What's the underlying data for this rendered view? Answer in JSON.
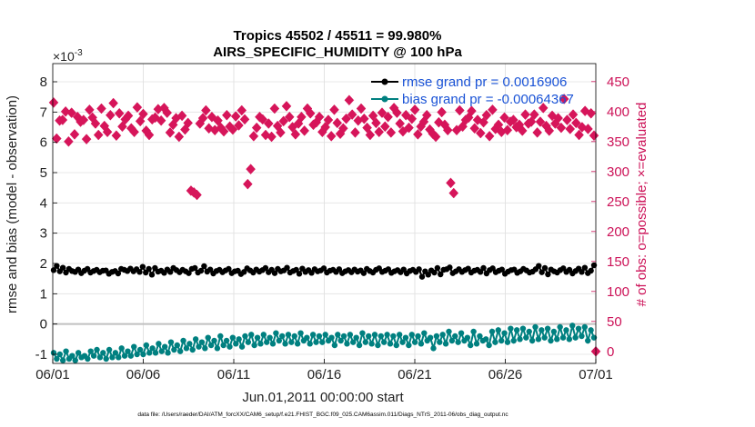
{
  "chart_data": {
    "type": "line",
    "title_line1": "Tropics 45502 / 45511 = 99.980%",
    "title_line2": "AIRS_SPECIFIC_HUMIDITY @ 100 hPa",
    "xlabel": "Jun.01,2011 00:00:00 start",
    "ylabel_left": "rmse and bias (model - observation)",
    "ylabel_right": "# of obs: o=possible; ×=evaluated",
    "left_exponent": "×10",
    "left_exponent_power": "-3",
    "x_tick_labels": [
      "06/01",
      "06/06",
      "06/11",
      "06/16",
      "06/21",
      "06/26",
      "07/01"
    ],
    "x_tick_days": [
      0,
      5,
      10,
      15,
      20,
      25,
      30
    ],
    "xlim": [
      0,
      30
    ],
    "left_ylim": [
      -1.3,
      8.6
    ],
    "left_ticks": [
      -1,
      0,
      1,
      2,
      3,
      4,
      5,
      6,
      7,
      8
    ],
    "right_ylim": [
      -20,
      480
    ],
    "right_ticks": [
      0,
      50,
      100,
      150,
      200,
      250,
      300,
      350,
      400,
      450
    ],
    "grid": true,
    "colors": {
      "rmse": "#000000",
      "bias": "#008080",
      "obs": "#d6155a",
      "right_axis": "#cc1157",
      "legend_text": "#1a53d6",
      "zero_line": "#c0c0c0"
    },
    "legend_placement": "top-right",
    "legend": [
      {
        "key": "rmse",
        "label": "rmse grand pr = 0.0016906"
      },
      {
        "key": "bias",
        "label": "bias grand pr = -0.00064367"
      }
    ],
    "series": [
      {
        "key": "rmse",
        "axis": "left",
        "values": [
          1.78,
          1.92,
          1.74,
          1.86,
          1.7,
          1.82,
          1.75,
          1.72,
          1.8,
          1.68,
          1.76,
          1.82,
          1.7,
          1.75,
          1.79,
          1.71,
          1.76,
          1.77,
          1.66,
          1.72,
          1.75,
          1.67,
          1.82,
          1.79,
          1.75,
          1.83,
          1.74,
          1.81,
          1.72,
          1.89,
          1.7,
          1.82,
          1.63,
          1.85,
          1.73,
          1.76,
          1.69,
          1.8,
          1.72,
          1.85,
          1.78,
          1.71,
          1.79,
          1.74,
          1.68,
          1.82,
          1.85,
          1.7,
          1.76,
          1.91,
          1.73,
          1.8,
          1.67,
          1.75,
          1.79,
          1.71,
          1.77,
          1.82,
          1.68,
          1.74,
          1.76,
          1.65,
          1.72,
          1.84,
          1.77,
          1.7,
          1.8,
          1.73,
          1.78,
          1.85,
          1.71,
          1.79,
          1.68,
          1.82,
          1.74,
          1.77,
          1.86,
          1.7,
          1.75,
          1.79,
          1.66,
          1.83,
          1.72,
          1.78,
          1.69,
          1.81,
          1.74,
          1.77,
          1.84,
          1.7,
          1.76,
          1.79,
          1.72,
          1.81,
          1.68,
          1.74,
          1.78,
          1.71,
          1.8,
          1.73,
          1.77,
          1.68,
          1.82,
          1.75,
          1.7,
          1.79,
          1.84,
          1.72,
          1.76,
          1.81,
          1.69,
          1.74,
          1.78,
          1.71,
          1.8,
          1.67,
          1.75,
          1.79,
          1.72,
          1.81,
          1.56,
          1.74,
          1.63,
          1.77,
          1.7,
          1.85,
          1.64,
          1.79,
          1.81,
          1.87,
          1.68,
          1.74,
          1.81,
          1.72,
          1.78,
          1.83,
          1.7,
          1.76,
          1.79,
          1.72,
          1.85,
          1.67,
          1.78,
          1.84,
          1.71,
          1.76,
          1.8,
          1.66,
          1.73,
          1.78,
          1.8,
          1.69,
          1.74,
          1.82,
          1.77,
          1.7,
          1.73,
          1.81,
          1.92,
          1.71,
          1.85,
          1.64,
          1.8,
          1.74,
          1.7,
          1.78,
          1.84,
          1.72,
          1.79,
          1.67,
          1.75,
          1.83,
          1.72,
          1.86,
          1.68,
          1.76,
          1.94
        ]
      },
      {
        "key": "bias",
        "axis": "left",
        "values": [
          -0.95,
          -1.15,
          -1.0,
          -1.2,
          -0.9,
          -1.15,
          -1.05,
          -1.2,
          -0.95,
          -1.1,
          -1.05,
          -1.15,
          -0.9,
          -1.05,
          -0.85,
          -1.1,
          -0.95,
          -1.15,
          -0.85,
          -1.1,
          -0.95,
          -1.1,
          -0.8,
          -1.05,
          -0.9,
          -1.05,
          -0.75,
          -1.0,
          -0.85,
          -1.0,
          -0.7,
          -0.95,
          -0.8,
          -0.95,
          -0.65,
          -0.9,
          -0.75,
          -0.95,
          -0.6,
          -0.85,
          -0.7,
          -0.9,
          -0.55,
          -0.8,
          -0.65,
          -0.85,
          -0.5,
          -0.75,
          -0.6,
          -0.8,
          -0.45,
          -0.7,
          -0.55,
          -0.8,
          -0.4,
          -0.7,
          -0.55,
          -0.75,
          -0.45,
          -0.65,
          -0.5,
          -0.75,
          -0.4,
          -0.6,
          -0.35,
          -0.7,
          -0.45,
          -0.65,
          -0.35,
          -0.6,
          -0.45,
          -0.65,
          -0.3,
          -0.55,
          -0.4,
          -0.65,
          -0.35,
          -0.6,
          -0.4,
          -0.65,
          -0.3,
          -0.55,
          -0.45,
          -0.65,
          -0.35,
          -0.6,
          -0.4,
          -0.6,
          -0.35,
          -0.55,
          -0.45,
          -0.7,
          -0.35,
          -0.55,
          -0.4,
          -0.65,
          -0.35,
          -0.6,
          -0.45,
          -0.7,
          -0.3,
          -0.6,
          -0.4,
          -0.65,
          -0.35,
          -0.7,
          -0.4,
          -0.6,
          -0.35,
          -0.65,
          -0.4,
          -0.7,
          -0.35,
          -0.6,
          -0.45,
          -0.7,
          -0.35,
          -0.6,
          -0.4,
          -0.65,
          -0.3,
          -0.55,
          -0.45,
          -0.8,
          -0.4,
          -0.6,
          -0.35,
          -0.65,
          -0.25,
          -0.55,
          -0.4,
          -0.6,
          -0.3,
          -0.55,
          -0.45,
          -0.7,
          -0.25,
          -0.65,
          -0.4,
          -0.55,
          -0.5,
          -0.7,
          -0.25,
          -0.6,
          -0.2,
          -0.55,
          -0.3,
          -0.6,
          -0.15,
          -0.55,
          -0.2,
          -0.5,
          -0.15,
          -0.45,
          -0.25,
          -0.55,
          -0.1,
          -0.5,
          -0.2,
          -0.45,
          -0.15,
          -0.55,
          -0.25,
          -0.5,
          -0.1,
          -0.45,
          -0.2,
          -0.5,
          -0.05,
          -0.45,
          -0.15,
          -0.4,
          -0.1,
          -0.55,
          -0.2,
          -0.45
        ]
      },
      {
        "key": "obs",
        "axis": "right",
        "values": [
          415,
          355,
          385,
          386,
          400,
          350,
          398,
          362,
          391,
          383,
          386,
          354,
          403,
          390,
          380,
          361,
          405,
          376,
          366,
          394,
          414,
          360,
          397,
          375,
          387,
          393,
          372,
          366,
          407,
          384,
          396,
          368,
          361,
          387,
          390,
          404,
          385,
          406,
          398,
          365,
          378,
          389,
          358,
          393,
          370,
          381,
          268,
          265,
          261,
          380,
          389,
          402,
          372,
          391,
          369,
          385,
          373,
          367,
          394,
          375,
          370,
          392,
          377,
          402,
          387,
          279,
          304,
          359,
          373,
          391,
          387,
          361,
          380,
          358,
          405,
          376,
          365,
          384,
          409,
          391,
          374,
          362,
          380,
          391,
          368,
          405,
          397,
          378,
          382,
          391,
          366,
          374,
          386,
          359,
          403,
          381,
          363,
          372,
          388,
          419,
          395,
          365,
          385,
          405,
          388,
          373,
          361,
          393,
          381,
          366,
          398,
          375,
          391,
          365,
          406,
          398,
          380,
          367,
          394,
          373,
          388,
          403,
          362,
          375,
          383,
          394,
          370,
          363,
          358,
          382,
          399,
          378,
          369,
          281,
          264,
          369,
          402,
          375,
          386,
          390,
          401,
          372,
          386,
          364,
          382,
          394,
          359,
          403,
          371,
          378,
          366,
          390,
          369,
          383,
          386,
          374,
          378,
          368,
          395,
          380,
          383,
          395,
          365,
          383,
          406,
          376,
          368,
          393,
          380,
          389,
          373,
          421,
          386,
          371,
          395,
          381,
          361,
          374,
          401,
          371,
          397,
          360
        ]
      }
    ],
    "obs_tail_value": 0
  },
  "footer": "data file: /Users/raeder/DAI/ATM_forcXX/CAM6_setup/f.e21.FHIST_BGC.f09_025.CAM6assim.011/Diags_NTrS_2011-06/obs_diag_output.nc"
}
